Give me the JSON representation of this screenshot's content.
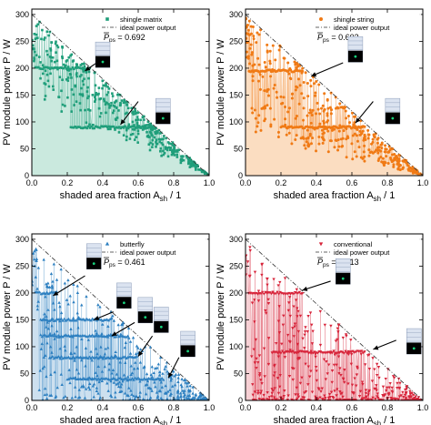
{
  "figure": {
    "ylabel": "PV module power P / W",
    "xlabel": "shaded area fraction A",
    "xlabel_sub": "sh",
    "xlabel_unit": " / 1",
    "ideal_label": "ideal power output",
    "pps_label": "P",
    "pps_sub": "ps",
    "pps_eq": " = "
  },
  "chart_data": [
    {
      "type": "scatter",
      "series": [
        {
          "name": "shingle matrix",
          "color": "#1f9e7a",
          "fill": "#b8e2d3",
          "marker": "square"
        }
      ],
      "pps": "0.692",
      "xlim": [
        0,
        1.0
      ],
      "ylim": [
        0,
        310
      ],
      "xticks": [
        "0.0",
        "0.2",
        "0.4",
        "0.6",
        "0.8",
        "1.0"
      ],
      "yticks": [
        "0",
        "50",
        "100",
        "150",
        "200",
        "250",
        "300"
      ],
      "levels": [
        {
          "y": 200,
          "x_start": 0.02,
          "x_end": 0.33
        },
        {
          "y": 90,
          "x_start": 0.22,
          "x_end": 0.7
        }
      ],
      "cloud": "upper",
      "legend_placement": "top-right",
      "insets": [
        {
          "x": 0.4,
          "y": 225
        },
        {
          "x": 0.74,
          "y": 120
        }
      ],
      "arrows": [
        {
          "from": [
            0.4,
            218
          ],
          "to": [
            0.3,
            195
          ]
        },
        {
          "from": [
            0.6,
            138
          ],
          "to": [
            0.5,
            95
          ]
        }
      ]
    },
    {
      "type": "scatter",
      "series": [
        {
          "name": "shingle string",
          "color": "#f07a15",
          "fill": "#f9d2ac",
          "marker": "circle"
        }
      ],
      "pps": "0.602",
      "xlim": [
        0,
        1.0
      ],
      "ylim": [
        0,
        310
      ],
      "xticks": [
        "0.0",
        "0.2",
        "0.4",
        "0.6",
        "0.8",
        "1.0"
      ],
      "yticks": [
        "0",
        "50",
        "100",
        "150",
        "200",
        "250",
        "300"
      ],
      "levels": [
        {
          "y": 195,
          "x_start": 0.02,
          "x_end": 0.33
        },
        {
          "y": 90,
          "x_start": 0.2,
          "x_end": 0.68
        }
      ],
      "cloud": "mid",
      "legend_placement": "top-right",
      "insets": [
        {
          "x": 0.62,
          "y": 235
        },
        {
          "x": 0.83,
          "y": 120
        }
      ],
      "arrows": [
        {
          "from": [
            0.55,
            210
          ],
          "to": [
            0.37,
            185
          ]
        },
        {
          "from": [
            0.72,
            138
          ],
          "to": [
            0.62,
            98
          ]
        }
      ]
    },
    {
      "type": "scatter",
      "series": [
        {
          "name": "butterfly",
          "color": "#2c7fc0",
          "fill": "#bcd6ea",
          "marker": "triangle-up"
        }
      ],
      "pps": "0.461",
      "xlim": [
        0,
        1.0
      ],
      "ylim": [
        0,
        310
      ],
      "xticks": [
        "0.0",
        "0.2",
        "0.4",
        "0.6",
        "0.8",
        "1.0"
      ],
      "yticks": [
        "0",
        "50",
        "100",
        "150",
        "200",
        "250",
        "300"
      ],
      "levels": [
        {
          "y": 200,
          "x_start": 0.02,
          "x_end": 0.15
        },
        {
          "y": 150,
          "x_start": 0.05,
          "x_end": 0.45
        },
        {
          "y": 120,
          "x_start": 0.05,
          "x_end": 0.55
        },
        {
          "y": 80,
          "x_start": 0.1,
          "x_end": 0.6
        },
        {
          "y": 40,
          "x_start": 0.2,
          "x_end": 0.75
        }
      ],
      "cloud": "low",
      "legend_placement": "top-right",
      "insets": [
        {
          "x": 0.35,
          "y": 268
        },
        {
          "x": 0.52,
          "y": 195
        },
        {
          "x": 0.64,
          "y": 168
        },
        {
          "x": 0.73,
          "y": 150
        },
        {
          "x": 0.88,
          "y": 105
        }
      ],
      "arrows": [
        {
          "from": [
            0.3,
            232
          ],
          "to": [
            0.12,
            195
          ]
        },
        {
          "from": [
            0.46,
            165
          ],
          "to": [
            0.35,
            150
          ]
        },
        {
          "from": [
            0.58,
            145
          ],
          "to": [
            0.45,
            120
          ]
        },
        {
          "from": [
            0.68,
            120
          ],
          "to": [
            0.6,
            82
          ]
        },
        {
          "from": [
            0.83,
            80
          ],
          "to": [
            0.77,
            42
          ]
        }
      ]
    },
    {
      "type": "scatter",
      "series": [
        {
          "name": "conventional",
          "color": "#d7243a",
          "fill": "#f4c0c6",
          "marker": "triangle-down"
        }
      ],
      "pps": "0.213",
      "xlim": [
        0,
        1.0
      ],
      "ylim": [
        0,
        310
      ],
      "xticks": [
        "0.0",
        "0.2",
        "0.4",
        "0.6",
        "0.8",
        "1.0"
      ],
      "yticks": [
        "0",
        "50",
        "100",
        "150",
        "200",
        "250",
        "300"
      ],
      "levels": [
        {
          "y": 200,
          "x_start": 0.02,
          "x_end": 0.33
        },
        {
          "y": 90,
          "x_start": 0.15,
          "x_end": 0.68
        }
      ],
      "cloud": "vlow",
      "legend_placement": "top-right",
      "insets": [
        {
          "x": 0.55,
          "y": 240
        },
        {
          "x": 0.95,
          "y": 110
        }
      ],
      "arrows": [
        {
          "from": [
            0.48,
            222
          ],
          "to": [
            0.32,
            205
          ]
        },
        {
          "from": [
            0.85,
            112
          ],
          "to": [
            0.72,
            95
          ]
        }
      ]
    }
  ]
}
